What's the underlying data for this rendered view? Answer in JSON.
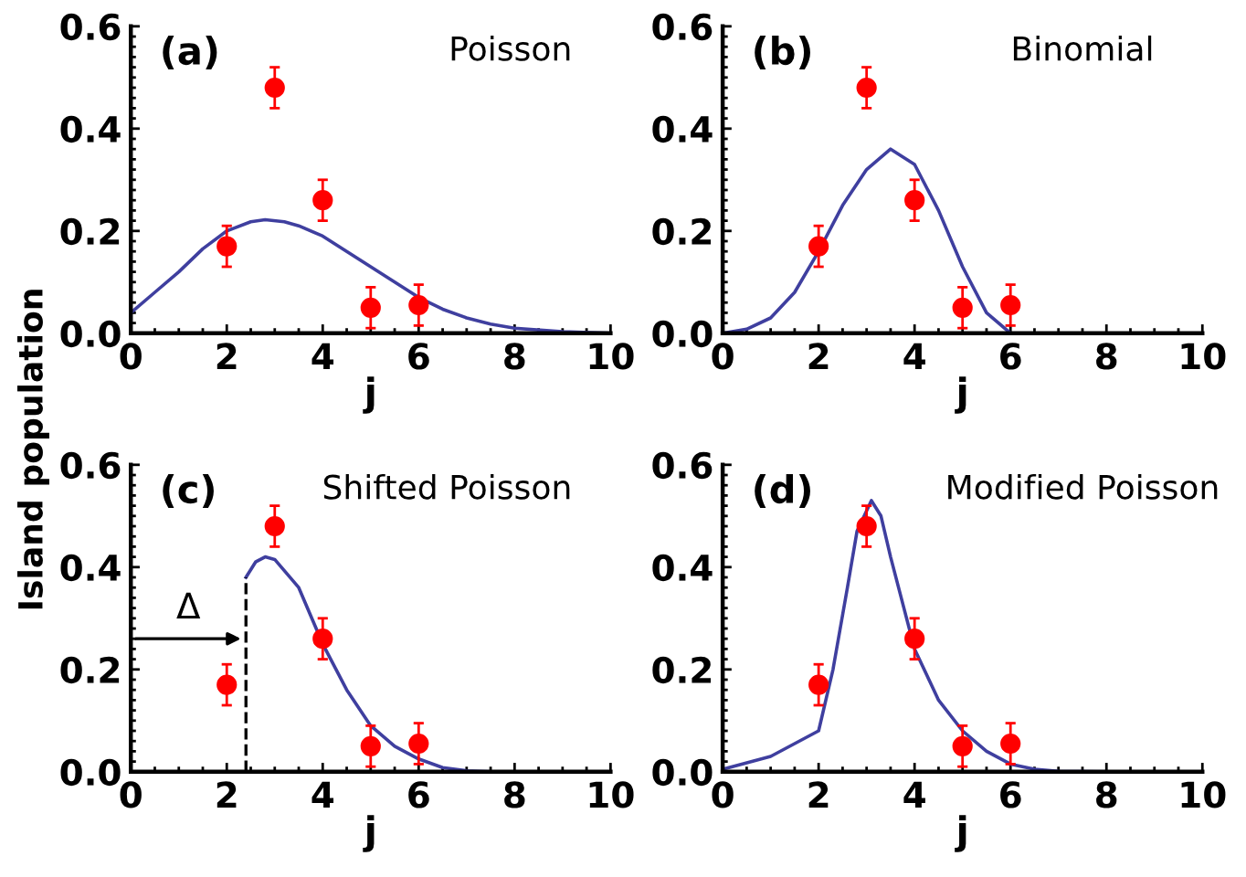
{
  "chart_data": [
    {
      "type": "scatter",
      "title": "(a)",
      "subtitle": "Poisson",
      "xlabel": "j",
      "xlim": [
        0,
        10
      ],
      "xticks": [
        0,
        2,
        4,
        6,
        8,
        10
      ],
      "ylim": [
        0,
        0.6
      ],
      "yticks": [
        {
          "value": 0,
          "label": "0.0"
        },
        {
          "value": 0.2,
          "label": "0.2"
        },
        {
          "value": 0.4,
          "label": "0.4"
        },
        {
          "value": 0.6,
          "label": "0.6"
        }
      ],
      "series": [
        {
          "marker": "circle",
          "color": "#ff0000",
          "x": [
            2,
            3,
            4,
            5,
            6
          ],
          "values": [
            0.17,
            0.48,
            0.26,
            0.05,
            0.055
          ],
          "errors": [
            0.04,
            0.04,
            0.04,
            0.04,
            0.04
          ]
        },
        {
          "type": "line",
          "color": "#3f3f9f",
          "x": [
            0,
            0.5,
            1,
            1.5,
            2,
            2.5,
            2.8,
            3.2,
            3.5,
            4,
            4.5,
            5,
            5.5,
            6,
            6.5,
            7,
            7.5,
            8,
            9,
            10
          ],
          "values": [
            0.04,
            0.08,
            0.12,
            0.165,
            0.2,
            0.218,
            0.222,
            0.218,
            0.21,
            0.19,
            0.16,
            0.13,
            0.1,
            0.07,
            0.047,
            0.03,
            0.018,
            0.01,
            0.003,
            0.0
          ]
        }
      ]
    },
    {
      "type": "scatter",
      "title": "(b)",
      "subtitle": "Binomial",
      "xlabel": "j",
      "xlim": [
        0,
        10
      ],
      "xticks": [
        0,
        2,
        4,
        6,
        8,
        10
      ],
      "ylim": [
        0,
        0.6
      ],
      "yticks": [
        {
          "value": 0,
          "label": "0.0"
        },
        {
          "value": 0.2,
          "label": "0.2"
        },
        {
          "value": 0.4,
          "label": "0.4"
        },
        {
          "value": 0.6,
          "label": "0.6"
        }
      ],
      "series": [
        {
          "marker": "circle",
          "color": "#ff0000",
          "x": [
            2,
            3,
            4,
            5,
            6
          ],
          "values": [
            0.17,
            0.48,
            0.26,
            0.05,
            0.055
          ],
          "errors": [
            0.04,
            0.04,
            0.04,
            0.04,
            0.04
          ]
        },
        {
          "type": "line",
          "color": "#3f3f9f",
          "x": [
            0,
            0.5,
            1,
            1.5,
            2,
            2.5,
            3,
            3.5,
            4,
            4.5,
            5,
            5.5,
            6
          ],
          "values": [
            0.0,
            0.008,
            0.03,
            0.08,
            0.16,
            0.25,
            0.32,
            0.36,
            0.33,
            0.24,
            0.13,
            0.04,
            0.0
          ]
        }
      ]
    },
    {
      "type": "scatter",
      "title": "(c)",
      "subtitle": "Shifted Poisson",
      "xlabel": "j",
      "ylabel": "Island population",
      "xlim": [
        0,
        10
      ],
      "xticks": [
        0,
        2,
        4,
        6,
        8,
        10
      ],
      "ylim": [
        0,
        0.6
      ],
      "yticks": [
        {
          "value": 0,
          "label": "0.0"
        },
        {
          "value": 0.2,
          "label": "0.2"
        },
        {
          "value": 0.4,
          "label": "0.4"
        },
        {
          "value": 0.6,
          "label": "0.6"
        }
      ],
      "annotations": [
        {
          "text": "Δ",
          "x": 2.4,
          "y": 0.26
        }
      ],
      "series": [
        {
          "marker": "circle",
          "color": "#ff0000",
          "x": [
            2,
            3,
            4,
            5,
            6
          ],
          "values": [
            0.17,
            0.48,
            0.26,
            0.05,
            0.055
          ],
          "errors": [
            0.04,
            0.04,
            0.04,
            0.04,
            0.04
          ]
        },
        {
          "type": "line",
          "color": "#3f3f9f",
          "x": [
            2.4,
            2.6,
            2.8,
            3,
            3.5,
            4,
            4.5,
            5,
            5.5,
            6,
            6.5,
            7,
            7.5,
            8
          ],
          "values": [
            0.38,
            0.41,
            0.42,
            0.415,
            0.36,
            0.25,
            0.16,
            0.09,
            0.05,
            0.025,
            0.008,
            0.002,
            0.0,
            0.0
          ]
        },
        {
          "type": "line",
          "color": "#000000",
          "line_style": "dashed",
          "x": [
            2.4,
            2.4
          ],
          "values": [
            0.0,
            0.38
          ]
        }
      ]
    },
    {
      "type": "scatter",
      "title": "(d)",
      "subtitle": "Modified Poisson",
      "xlabel": "j",
      "xlim": [
        0,
        10
      ],
      "xticks": [
        0,
        2,
        4,
        6,
        8,
        10
      ],
      "ylim": [
        0,
        0.6
      ],
      "yticks": [
        {
          "value": 0,
          "label": "0.0"
        },
        {
          "value": 0.2,
          "label": "0.2"
        },
        {
          "value": 0.4,
          "label": "0.4"
        },
        {
          "value": 0.6,
          "label": "0.6"
        }
      ],
      "series": [
        {
          "marker": "circle",
          "color": "#ff0000",
          "x": [
            2,
            3,
            4,
            5,
            6
          ],
          "values": [
            0.17,
            0.48,
            0.26,
            0.05,
            0.055
          ],
          "errors": [
            0.04,
            0.04,
            0.04,
            0.04,
            0.04
          ]
        },
        {
          "type": "line",
          "color": "#3f3f9f",
          "x": [
            0,
            1,
            2,
            2.3,
            2.6,
            2.8,
            3.1,
            3.3,
            3.5,
            4,
            4.5,
            5,
            5.5,
            6,
            6.5,
            7,
            8
          ],
          "values": [
            0.005,
            0.03,
            0.08,
            0.2,
            0.36,
            0.47,
            0.53,
            0.5,
            0.42,
            0.24,
            0.14,
            0.08,
            0.04,
            0.015,
            0.005,
            0.001,
            0.0
          ]
        }
      ]
    }
  ]
}
